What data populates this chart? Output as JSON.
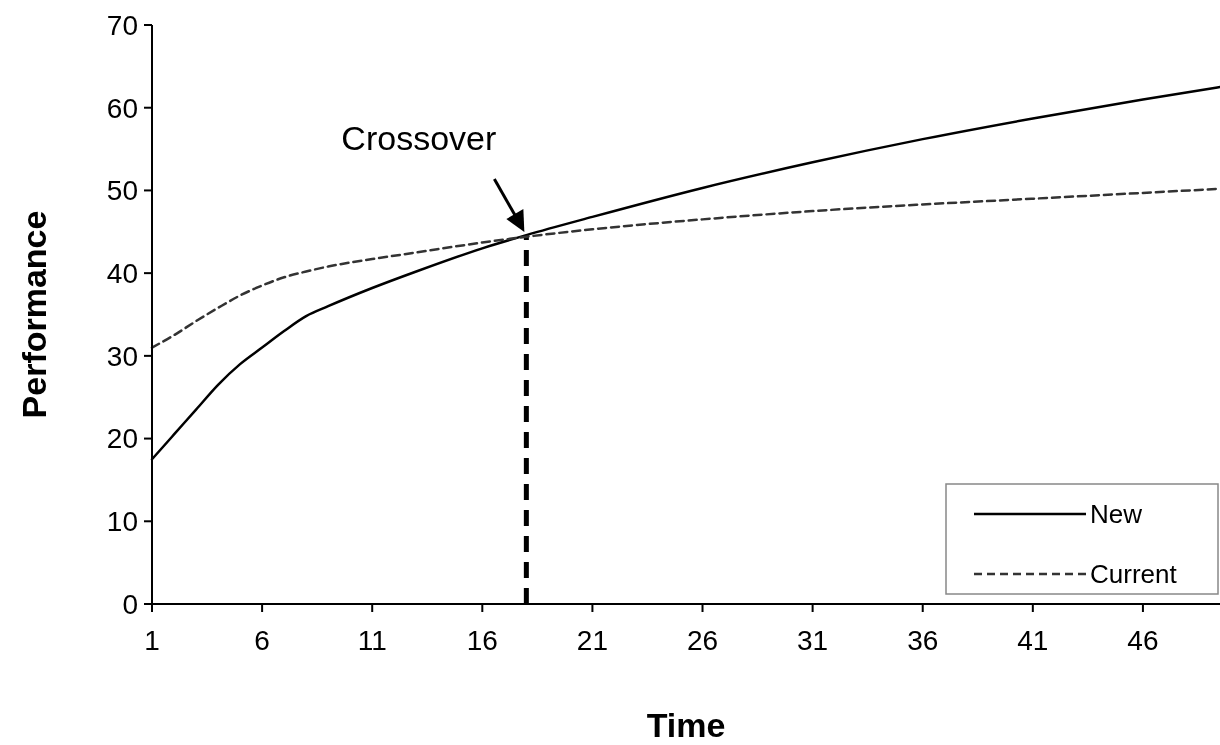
{
  "chart_data": {
    "type": "line",
    "xlabel": "Time",
    "ylabel": "Performance",
    "xlim": [
      1,
      49.5
    ],
    "xticks": [
      1,
      6,
      11,
      16,
      21,
      26,
      31,
      36,
      41,
      46
    ],
    "ylim": [
      0,
      70
    ],
    "yticks": [
      0,
      10,
      20,
      30,
      40,
      50,
      60,
      70
    ],
    "series": [
      {
        "name": "New",
        "color": "#000000",
        "line_style": "solid",
        "x": [
          1,
          2,
          3,
          4,
          5,
          6,
          7,
          8,
          9,
          11,
          13,
          16,
          18,
          21,
          26,
          31,
          36,
          41,
          46,
          49.5
        ],
        "values": [
          17.5,
          20.5,
          23.5,
          26.5,
          29,
          31,
          33,
          34.8,
          36,
          38.2,
          40.2,
          43,
          44.6,
          46.8,
          50.3,
          53.4,
          56.2,
          58.7,
          61,
          62.5
        ]
      },
      {
        "name": "Current",
        "color": "#333333",
        "line_style": "dashed",
        "x": [
          1,
          2,
          3,
          4,
          5,
          6,
          7,
          8,
          9,
          11,
          13,
          16,
          18,
          21,
          26,
          31,
          36,
          41,
          46,
          49.5
        ],
        "values": [
          31,
          32.5,
          34.2,
          35.8,
          37.3,
          38.5,
          39.5,
          40.2,
          40.8,
          41.7,
          42.5,
          43.7,
          44.4,
          45.3,
          46.5,
          47.5,
          48.3,
          49,
          49.7,
          50.2
        ]
      }
    ],
    "ref_lines": [
      {
        "axis": "x",
        "value": 18,
        "label": null,
        "line_style": "dashed",
        "color": "#000000"
      }
    ],
    "annotations": [
      {
        "text": "Crossover",
        "x": 18,
        "y": 44.6
      }
    ],
    "legend": "bottom right",
    "grid": false,
    "marker": "none"
  }
}
